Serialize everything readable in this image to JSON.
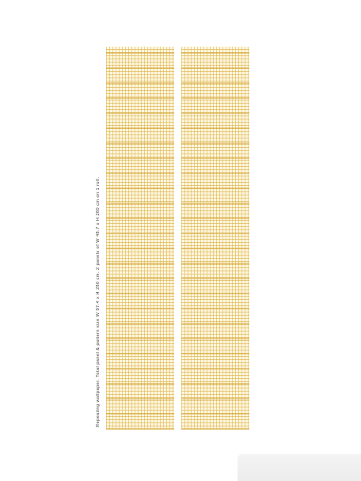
{
  "caption": {
    "text": "Repeating wallpaper. Total panel & pattern size W 97.4 x H 280 cm. 2 panels of W 48.7 x H 280 cm on 1 roll."
  },
  "panels": [
    {
      "label": "",
      "pattern": "yellow-grid-weave"
    },
    {
      "label": "",
      "pattern": "yellow-grid-weave"
    }
  ],
  "colors": {
    "background": "#ffffff",
    "panel_base": "#fdf6df",
    "grid_line": "#d6a834",
    "caption_text": "#3a3a3a"
  }
}
